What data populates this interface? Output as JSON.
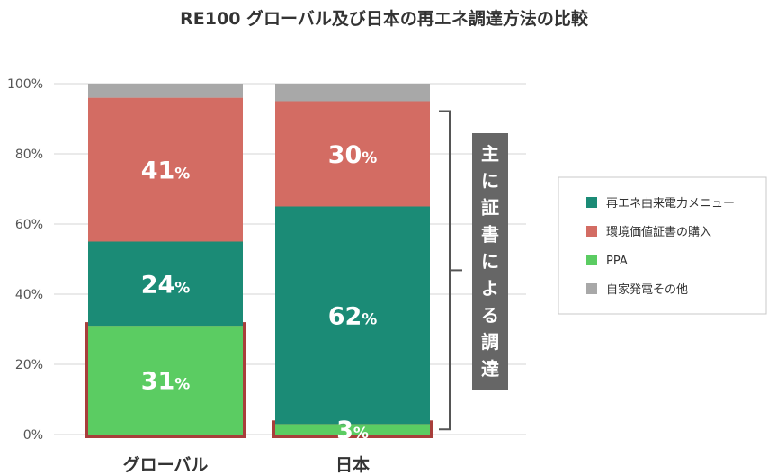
{
  "chart_data": {
    "type": "bar",
    "stacked": true,
    "title": "RE100 グローバル及び日本の再エネ調達方法の比較",
    "categories": [
      "グローバル",
      "日本"
    ],
    "ylim": [
      0,
      100
    ],
    "y_ticks": [
      "0%",
      "20%",
      "40%",
      "60%",
      "80%",
      "100%"
    ],
    "grid": true,
    "legend_position": "right",
    "series": [
      {
        "name": "PPA",
        "values": [
          31,
          3
        ],
        "labels": [
          "31",
          "3"
        ],
        "color": "#5bcc62"
      },
      {
        "name": "再エネ由来電力メニュー",
        "values": [
          24,
          62
        ],
        "labels": [
          "24",
          "62"
        ],
        "color": "#1b8b76"
      },
      {
        "name": "環境価値証書の購入",
        "values": [
          41,
          30
        ],
        "labels": [
          "41",
          "30"
        ],
        "color": "#d36c63"
      },
      {
        "name": "自家発電その他",
        "values": [
          4,
          5
        ],
        "labels": [
          "",
          ""
        ],
        "color": "#a8a8a8"
      }
    ],
    "legend_order": [
      "再エネ由来電力メニュー",
      "環境価値証書の購入",
      "PPA",
      "自家発電その他"
    ],
    "percent_sign": "%",
    "highlight_series": "PPA",
    "highlight_color": "#a83e3b",
    "annotation": {
      "text": "主に証書による調達",
      "spans_series": [
        "再エネ由来電力メニュー",
        "環境価値証書の購入"
      ],
      "category": "日本"
    }
  }
}
